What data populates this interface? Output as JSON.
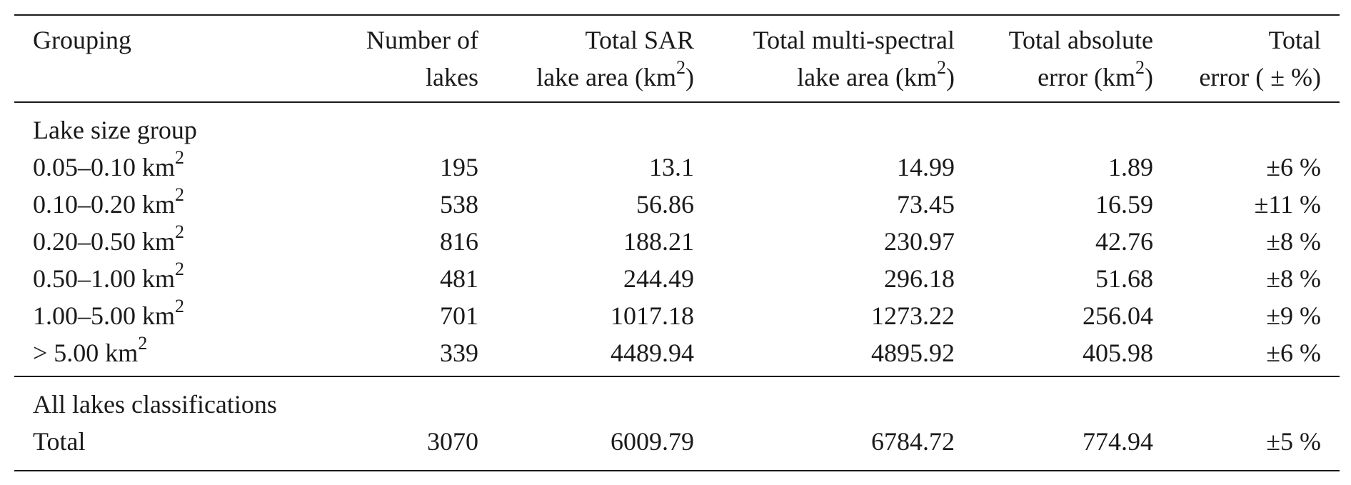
{
  "table": {
    "headers": [
      {
        "line1": "Grouping",
        "line2": "",
        "unit": ""
      },
      {
        "line1": "Number of",
        "line2": "lakes",
        "unit": ""
      },
      {
        "line1": "Total SAR",
        "line2": "lake area (km",
        "unit": ")"
      },
      {
        "line1": "Total multi-spectral",
        "line2": "lake area (km",
        "unit": ")"
      },
      {
        "line1": "Total absolute",
        "line2": "error (km",
        "unit": ")"
      },
      {
        "line1": "Total",
        "line2": "error ( ± %)",
        "unit": ""
      }
    ],
    "superscript": "2",
    "section_lake_size": "Lake size group",
    "rows": [
      {
        "group": "0.05–0.10 km",
        "lakes": "195",
        "sar": "13.1",
        "ms": "14.99",
        "abs": "1.89",
        "err": "±6 %"
      },
      {
        "group": "0.10–0.20 km",
        "lakes": "538",
        "sar": "56.86",
        "ms": "73.45",
        "abs": "16.59",
        "err": "±11 %"
      },
      {
        "group": "0.20–0.50 km",
        "lakes": "816",
        "sar": "188.21",
        "ms": "230.97",
        "abs": "42.76",
        "err": "±8 %"
      },
      {
        "group": "0.50–1.00 km",
        "lakes": "481",
        "sar": "244.49",
        "ms": "296.18",
        "abs": "51.68",
        "err": "±8 %"
      },
      {
        "group": "1.00–5.00 km",
        "lakes": "701",
        "sar": "1017.18",
        "ms": "1273.22",
        "abs": "256.04",
        "err": "±9 %"
      },
      {
        "group": "> 5.00 km",
        "lakes": "339",
        "sar": "4489.94",
        "ms": "4895.92",
        "abs": "405.98",
        "err": "±6 %"
      }
    ],
    "section_all": "All lakes classifications",
    "total": {
      "group": "Total",
      "lakes": "3070",
      "sar": "6009.79",
      "ms": "6784.72",
      "abs": "774.94",
      "err": "±5 %"
    }
  }
}
